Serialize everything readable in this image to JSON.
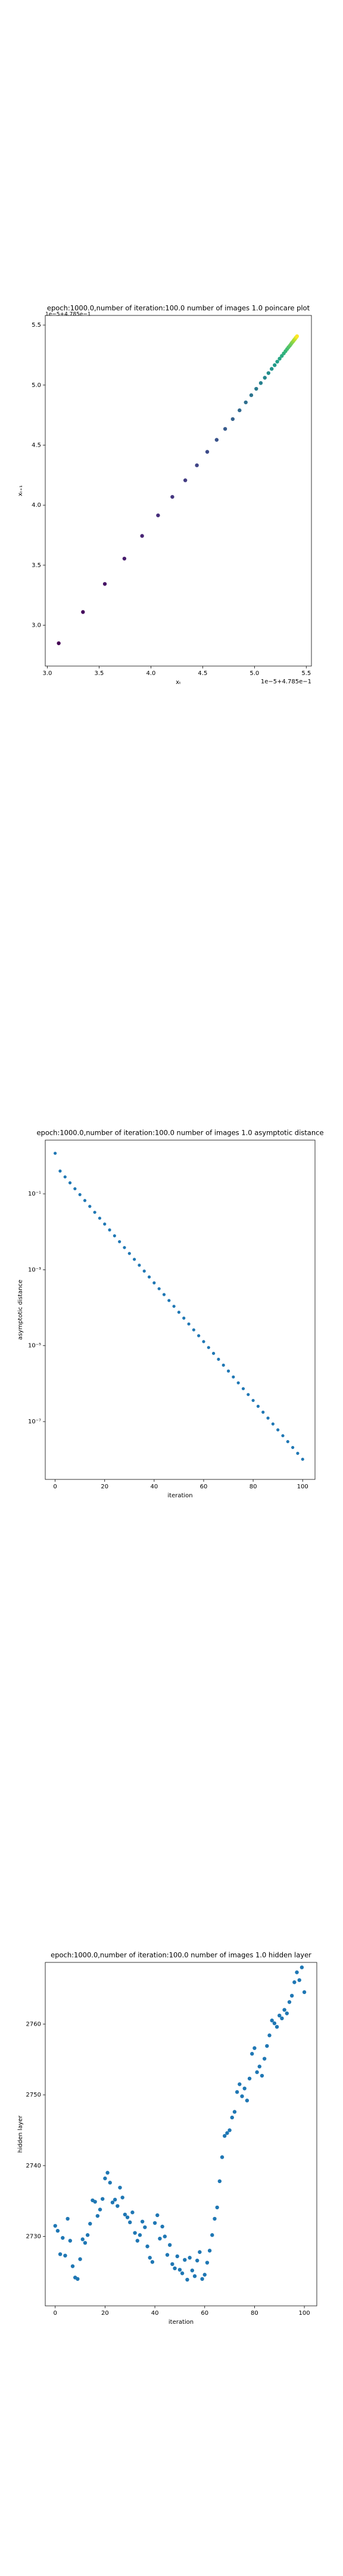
{
  "chart_data": [
    {
      "type": "scatter",
      "title": "epoch:1000.0,number of iteration:100.0 number of images 1.0 poincare plot",
      "x_label": "xₜ",
      "y_label": "xₜ₊₁",
      "x_offset": "1e−5+4.785e−1",
      "y_offset": "1e−5+4.785e−1",
      "colormap": "viridis",
      "x": [
        3.11,
        3.344,
        3.555,
        3.744,
        3.915,
        4.069,
        4.207,
        4.332,
        4.444,
        4.544,
        4.635,
        4.717,
        4.79,
        4.856,
        4.916,
        4.969,
        5.017,
        5.061,
        5.1,
        5.135,
        5.166,
        5.195,
        5.22,
        5.243,
        5.264,
        5.283,
        5.3,
        5.315,
        5.328,
        5.341,
        5.352,
        5.361,
        5.37,
        5.378,
        5.385,
        5.392,
        5.397,
        5.402,
        5.407,
        5.411
      ],
      "values": [
        2.85,
        3.11,
        3.344,
        3.555,
        3.744,
        3.915,
        4.069,
        4.207,
        4.332,
        4.444,
        4.544,
        4.635,
        4.717,
        4.79,
        4.856,
        4.916,
        4.969,
        5.017,
        5.061,
        5.1,
        5.135,
        5.166,
        5.195,
        5.22,
        5.243,
        5.264,
        5.283,
        5.3,
        5.315,
        5.328,
        5.341,
        5.352,
        5.361,
        5.37,
        5.378,
        5.385,
        5.392,
        5.397,
        5.402,
        5.407
      ],
      "xlim": [
        2.98,
        5.55
      ],
      "ylim": [
        2.66,
        5.58
      ],
      "xticks": [
        {
          "value": 3,
          "label": "3.0"
        },
        3.5,
        {
          "value": 4,
          "label": "4.0"
        },
        4.5,
        {
          "value": 5,
          "label": "5.0"
        },
        5.5
      ],
      "yticks": [
        {
          "value": 3,
          "label": "3.0"
        },
        3.5,
        {
          "value": 4,
          "label": "4.0"
        },
        4.5,
        {
          "value": 5,
          "label": "5.0"
        },
        5.5
      ]
    },
    {
      "type": "scatter",
      "title": "epoch:1000.0,number of iteration:100.0  number of images 1.0 asymptotic distance",
      "x_label": "iteration",
      "y_label": "asymptotic distance",
      "color": "#1f77b4",
      "log_y": true,
      "x": [
        0,
        2,
        4,
        6,
        8,
        10,
        12,
        14,
        16,
        18,
        20,
        22,
        24,
        26,
        28,
        30,
        32,
        34,
        36,
        38,
        40,
        42,
        44,
        46,
        48,
        50,
        52,
        54,
        56,
        58,
        60,
        62,
        64,
        66,
        68,
        70,
        72,
        74,
        76,
        78,
        80,
        82,
        84,
        86,
        88,
        90,
        92,
        94,
        96,
        98,
        100
      ],
      "values": [
        1.17,
        0.398,
        0.279,
        0.195,
        0.136,
        0.0953,
        0.0667,
        0.0467,
        0.0326,
        0.0228,
        0.016,
        0.0112,
        0.00784,
        0.00549,
        0.00384,
        0.00269,
        0.00188,
        0.00132,
        0.000923,
        0.000646,
        0.000452,
        0.000317,
        0.000222,
        0.000155,
        0.000109,
        7.6e-05,
        5.32e-05,
        3.73e-05,
        2.61e-05,
        1.83e-05,
        1.28e-05,
        8.95e-06,
        6.27e-06,
        4.39e-06,
        3.07e-06,
        2.15e-06,
        1.5e-06,
        1.05e-06,
        7.37e-07,
        5.16e-07,
        3.61e-07,
        2.53e-07,
        1.77e-07,
        1.24e-07,
        8.67e-08,
        6.07e-08,
        4.25e-08,
        2.97e-08,
        2.08e-08,
        1.46e-08,
        1.02e-08
      ],
      "xlim": [
        -4,
        105
      ],
      "ylim": [
        3e-09,
        2.6
      ],
      "xticks": [
        0,
        20,
        40,
        60,
        80,
        100
      ],
      "yticks": [
        {
          "value": 0.1,
          "label": "10⁻¹"
        },
        {
          "value": 0.001,
          "label": "10⁻³"
        },
        {
          "value": 1e-05,
          "label": "10⁻⁵"
        },
        {
          "value": 1e-07,
          "label": "10⁻⁷"
        }
      ]
    },
    {
      "type": "scatter",
      "title": "epoch:1000.0,number of iteration:100.0  number of images 1.0 hidden layer",
      "x_label": "iteration",
      "y_label": "hidden layer",
      "color": "#1f77b4",
      "x": [
        0,
        1,
        2,
        3,
        4,
        5,
        6,
        7,
        8,
        9,
        10,
        11,
        12,
        13,
        14,
        15,
        16,
        17,
        18,
        19,
        20,
        21,
        22,
        23,
        24,
        25,
        26,
        27,
        28,
        29,
        30,
        31,
        32,
        33,
        34,
        35,
        36,
        37,
        38,
        39,
        40,
        41,
        42,
        43,
        44,
        45,
        46,
        47,
        48,
        49,
        50,
        51,
        52,
        53,
        54,
        55,
        56,
        57,
        58,
        59,
        60,
        61,
        62,
        63,
        64,
        65,
        66,
        67,
        68,
        69,
        70,
        71,
        72,
        73,
        74,
        75,
        76,
        77,
        78,
        79,
        80,
        81,
        82,
        83,
        84,
        85,
        86,
        87,
        88,
        89,
        90,
        91,
        92,
        93,
        94,
        95,
        96,
        97,
        98,
        99,
        100
      ],
      "values": [
        2731.5,
        2730.8,
        2727.5,
        2729.8,
        2727.3,
        2732.5,
        2729.4,
        2725.8,
        2724.2,
        2724.0,
        2726.8,
        2729.6,
        2729.1,
        2730.2,
        2731.8,
        2735.1,
        2734.9,
        2732.9,
        2733.8,
        2735.3,
        2738.2,
        2739.0,
        2737.6,
        2734.8,
        2735.2,
        2734.3,
        2736.9,
        2735.5,
        2733.1,
        2732.7,
        2732.0,
        2733.4,
        2730.5,
        2729.4,
        2730.2,
        2732.1,
        2731.3,
        2728.6,
        2727.0,
        2726.4,
        2731.9,
        2733.0,
        2729.7,
        2731.4,
        2730.0,
        2727.4,
        2728.8,
        2726.1,
        2725.5,
        2727.2,
        2725.3,
        2724.8,
        2726.7,
        2723.9,
        2727.0,
        2725.2,
        2724.4,
        2726.6,
        2727.8,
        2724.0,
        2724.6,
        2726.3,
        2728.0,
        2730.2,
        2732.5,
        2734.1,
        2737.8,
        2741.2,
        2744.2,
        2744.6,
        2745.0,
        2746.8,
        2747.6,
        2750.4,
        2751.5,
        2749.8,
        2750.9,
        2749.2,
        2752.3,
        2755.8,
        2756.6,
        2753.2,
        2754.0,
        2752.7,
        2755.1,
        2756.9,
        2758.4,
        2760.5,
        2760.1,
        2759.6,
        2761.2,
        2760.8,
        2762.0,
        2761.5,
        2763.1,
        2764.0,
        2765.9,
        2767.3,
        2766.2,
        2768.0,
        2764.5
      ],
      "xlim": [
        -4,
        105
      ],
      "ylim": [
        2720.2,
        2768.7
      ],
      "xticks": [
        0,
        20,
        40,
        60,
        80,
        100
      ],
      "yticks": [
        2730,
        2740,
        2750,
        2760
      ]
    }
  ]
}
